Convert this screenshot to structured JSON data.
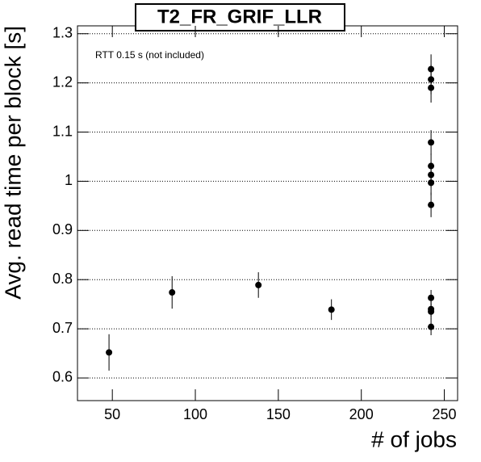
{
  "chart_data": {
    "type": "scatter",
    "title": "T2_FR_GRIF_LLR",
    "annotation": "RTT 0.15 s (not included)",
    "x_label": "# of jobs",
    "y_label": "Avg. read time per block [s]",
    "x": [
      48,
      86,
      138,
      182,
      242,
      242,
      242,
      242,
      242,
      242,
      242,
      242,
      242,
      242,
      242,
      242
    ],
    "values": [
      0.652,
      0.774,
      0.789,
      0.739,
      1.228,
      1.207,
      1.19,
      1.079,
      1.031,
      1.013,
      0.997,
      0.952,
      0.763,
      0.74,
      0.735,
      0.704
    ],
    "errors": [
      0.037,
      0.033,
      0.026,
      0.021,
      0.03,
      0.03,
      0.03,
      0.025,
      0.025,
      0.025,
      0.025,
      0.025,
      0.016,
      0.016,
      0.016,
      0.017
    ],
    "color": "#000000",
    "xlim": [
      29,
      258
    ],
    "xticks": [
      50,
      100,
      150,
      200,
      250
    ],
    "ylim": [
      0.554,
      1.316
    ],
    "yticks": [
      0.6,
      0.7,
      0.8,
      0.9,
      1,
      1.1,
      1.2,
      1.3
    ],
    "grid": true
  }
}
